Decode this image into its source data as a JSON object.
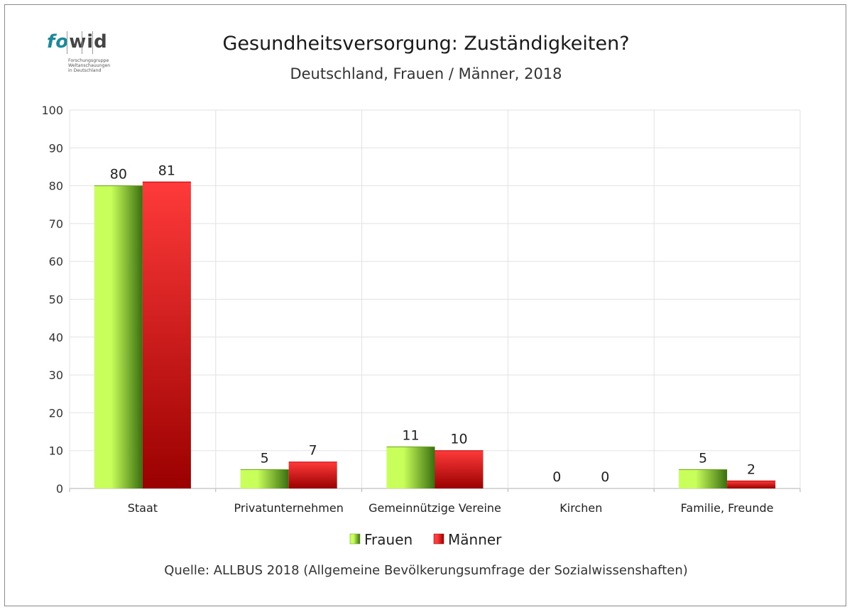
{
  "logo": {
    "fo": "fo",
    "wid": "wid",
    "line1": "Forschungsgruppe",
    "line2": "Weltanschauungen",
    "line3": "in Deutschland"
  },
  "chart_data": {
    "type": "bar",
    "title": "Gesundheitsversorgung: Zuständigkeiten?",
    "subtitle": "Deutschland, Frauen / Männer, 2018",
    "categories": [
      "Staat",
      "Privatunternehmen",
      "Gemeinnützige Vereine",
      "Kirchen",
      "Familie, Freunde"
    ],
    "series": [
      {
        "name": "Frauen",
        "values": [
          80,
          5,
          11,
          0,
          5
        ],
        "color_light": "#c8ff5a",
        "color_dark": "#3a6e10"
      },
      {
        "name": "Männer",
        "values": [
          81,
          7,
          10,
          0,
          2
        ],
        "color_light": "#ff3a3a",
        "color_dark": "#9a0000"
      }
    ],
    "ylim": [
      0,
      100
    ],
    "yticks": [
      0,
      10,
      20,
      30,
      40,
      50,
      60,
      70,
      80,
      90,
      100
    ],
    "legend_position": "bottom",
    "grid": true,
    "source": "Quelle: ALLBUS 2018 (Allgemeine Bevölkerungsumfrage der Sozialwissenshaften)"
  }
}
